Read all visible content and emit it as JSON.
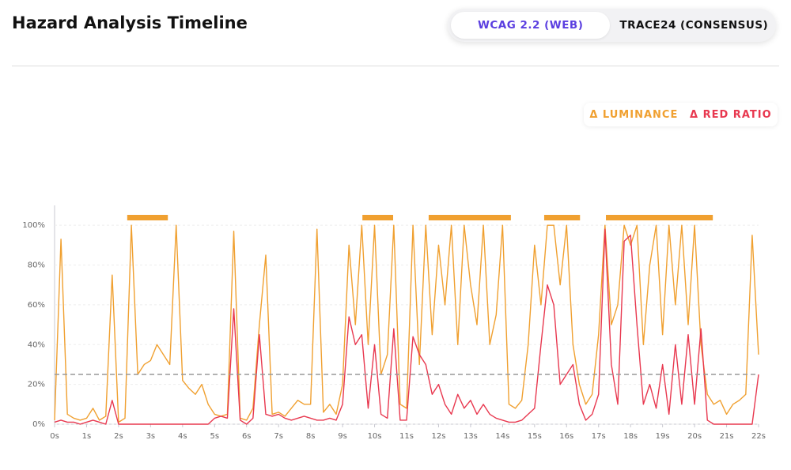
{
  "header": {
    "title": "Hazard Analysis Timeline"
  },
  "tabs": [
    {
      "label": "WCAG 2.2 (WEB)",
      "active": true
    },
    {
      "label": "TRACE24 (CONSENSUS)",
      "active": false
    }
  ],
  "chart_data": {
    "type": "line",
    "x": [
      0,
      0.2,
      0.4,
      0.6,
      0.8,
      1,
      1.2,
      1.4,
      1.6,
      1.8,
      2,
      2.2,
      2.4,
      2.6,
      2.8,
      3,
      3.2,
      3.4,
      3.6,
      3.8,
      4,
      4.2,
      4.4,
      4.6,
      4.8,
      5,
      5.2,
      5.4,
      5.6,
      5.8,
      6,
      6.2,
      6.4,
      6.6,
      6.8,
      7,
      7.2,
      7.4,
      7.6,
      7.8,
      8,
      8.2,
      8.4,
      8.6,
      8.8,
      9,
      9.2,
      9.4,
      9.6,
      9.8,
      10,
      10.2,
      10.4,
      10.6,
      10.8,
      11,
      11.2,
      11.4,
      11.6,
      11.8,
      12,
      12.2,
      12.4,
      12.6,
      12.8,
      13,
      13.2,
      13.4,
      13.6,
      13.8,
      14,
      14.2,
      14.4,
      14.6,
      14.8,
      15,
      15.2,
      15.4,
      15.6,
      15.8,
      16,
      16.2,
      16.4,
      16.6,
      16.8,
      17,
      17.2,
      17.4,
      17.6,
      17.8,
      18,
      18.2,
      18.4,
      18.6,
      18.8,
      19,
      19.2,
      19.4,
      19.6,
      19.8,
      20,
      20.2,
      20.4,
      20.6,
      20.8,
      21,
      21.2,
      21.4,
      21.6,
      21.8,
      22
    ],
    "series": [
      {
        "name": "Δ LUMINANCE",
        "color": "#f0a030",
        "values": [
          2,
          93,
          5,
          3,
          2,
          3,
          8,
          2,
          4,
          75,
          1,
          3,
          100,
          25,
          30,
          32,
          40,
          35,
          30,
          100,
          22,
          18,
          15,
          20,
          10,
          5,
          4,
          5,
          97,
          3,
          2,
          8,
          50,
          85,
          5,
          6,
          4,
          8,
          12,
          10,
          10,
          98,
          6,
          10,
          5,
          20,
          90,
          50,
          100,
          40,
          100,
          25,
          35,
          100,
          10,
          8,
          100,
          30,
          100,
          45,
          90,
          60,
          100,
          40,
          100,
          70,
          50,
          100,
          40,
          55,
          100,
          10,
          8,
          12,
          40,
          90,
          60,
          100,
          100,
          70,
          100,
          40,
          20,
          10,
          15,
          45,
          100,
          50,
          60,
          100,
          90,
          100,
          40,
          80,
          100,
          45,
          100,
          60,
          100,
          50,
          100,
          40,
          15,
          10,
          12,
          5,
          10,
          12,
          15,
          95,
          35
        ]
      },
      {
        "name": "Δ RED RATIO",
        "color": "#e8384f",
        "values": [
          1,
          2,
          1,
          1,
          0,
          1,
          2,
          1,
          0,
          12,
          0,
          0,
          0,
          0,
          0,
          0,
          0,
          0,
          0,
          0,
          0,
          0,
          0,
          0,
          0,
          3,
          4,
          3,
          58,
          2,
          0,
          3,
          45,
          5,
          4,
          5,
          3,
          2,
          3,
          4,
          3,
          2,
          2,
          3,
          2,
          10,
          54,
          40,
          45,
          8,
          40,
          5,
          3,
          48,
          2,
          2,
          44,
          35,
          30,
          15,
          20,
          10,
          5,
          15,
          8,
          12,
          5,
          10,
          5,
          3,
          2,
          1,
          1,
          2,
          5,
          8,
          40,
          70,
          60,
          20,
          25,
          30,
          10,
          2,
          5,
          15,
          98,
          30,
          10,
          92,
          95,
          50,
          10,
          20,
          8,
          30,
          5,
          40,
          10,
          45,
          10,
          48,
          2,
          0,
          0,
          0,
          0,
          0,
          0,
          0,
          25
        ]
      }
    ],
    "xlim": [
      0,
      22
    ],
    "ylim": [
      0,
      110
    ],
    "xticks": [
      {
        "value": 0,
        "label": "0s"
      },
      {
        "value": 1,
        "label": "1s"
      },
      {
        "value": 2,
        "label": "2s"
      },
      {
        "value": 3,
        "label": "3s"
      },
      {
        "value": 4,
        "label": "4s"
      },
      {
        "value": 5,
        "label": "5s"
      },
      {
        "value": 6,
        "label": "6s"
      },
      {
        "value": 7,
        "label": "7s"
      },
      {
        "value": 8,
        "label": "8s"
      },
      {
        "value": 9,
        "label": "9s"
      },
      {
        "value": 10,
        "label": "10s"
      },
      {
        "value": 11,
        "label": "11s"
      },
      {
        "value": 12,
        "label": "12s"
      },
      {
        "value": 13,
        "label": "13s"
      },
      {
        "value": 14,
        "label": "14s"
      },
      {
        "value": 15,
        "label": "15s"
      },
      {
        "value": 16,
        "label": "16s"
      },
      {
        "value": 17,
        "label": "17s"
      },
      {
        "value": 18,
        "label": "18s"
      },
      {
        "value": 19,
        "label": "19s"
      },
      {
        "value": 20,
        "label": "20s"
      },
      {
        "value": 21,
        "label": "21s"
      },
      {
        "value": 22,
        "label": "22s"
      }
    ],
    "yticks": [
      {
        "value": 0,
        "label": "0%"
      },
      {
        "value": 20,
        "label": "20%"
      },
      {
        "value": 40,
        "label": "40%"
      },
      {
        "value": 60,
        "label": "60%"
      },
      {
        "value": 80,
        "label": "80%"
      },
      {
        "value": 100,
        "label": "100%"
      }
    ],
    "threshold": 25,
    "flagged_intervals": [
      [
        2.27,
        3.54
      ],
      [
        9.62,
        10.58
      ],
      [
        11.69,
        14.26
      ],
      [
        15.3,
        16.42
      ],
      [
        17.23,
        20.57
      ]
    ],
    "flag_color": "#f0a030",
    "grid": true
  }
}
